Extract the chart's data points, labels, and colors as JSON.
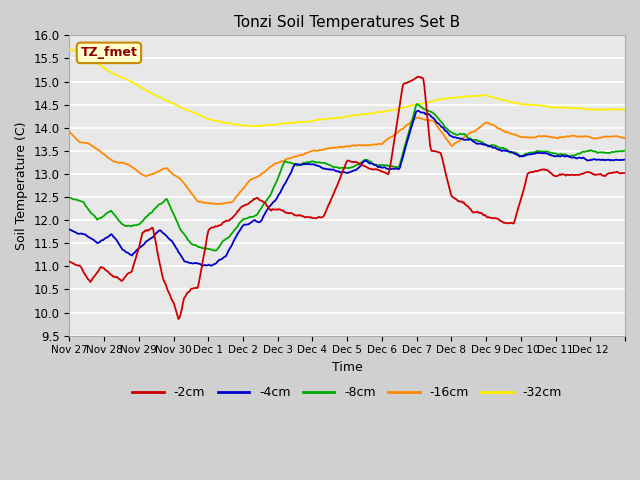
{
  "title": "Tonzi Soil Temperatures Set B",
  "xlabel": "Time",
  "ylabel": "Soil Temperature (C)",
  "ylim": [
    9.5,
    16.0
  ],
  "yticks": [
    9.5,
    10.0,
    10.5,
    11.0,
    11.5,
    12.0,
    12.5,
    13.0,
    13.5,
    14.0,
    14.5,
    15.0,
    15.5,
    16.0
  ],
  "legend_label": "TZ_fmet",
  "series": {
    "neg2cm": {
      "label": "-2cm",
      "color": "#cc0000"
    },
    "neg4cm": {
      "label": "-4cm",
      "color": "#0000cc"
    },
    "neg8cm": {
      "label": "-8cm",
      "color": "#00aa00"
    },
    "neg16cm": {
      "label": "-16cm",
      "color": "#ff8800"
    },
    "neg32cm": {
      "label": "-32cm",
      "color": "#ffee00"
    }
  },
  "xtick_positions": [
    0,
    1,
    2,
    3,
    4,
    5,
    6,
    7,
    8,
    9,
    10,
    11,
    12,
    13,
    14,
    15,
    16
  ],
  "xtick_labels": [
    "Nov 27",
    "Nov 28",
    "Nov 29",
    "Nov 30",
    "Dec 1",
    "Dec 2",
    "Dec 3",
    "Dec 4",
    "Dec 5",
    "Dec 6",
    "Dec 7",
    "Dec 8",
    "Dec 9",
    "Dec 10",
    "Dec 11",
    "Dec 12",
    ""
  ],
  "n_points": 480
}
